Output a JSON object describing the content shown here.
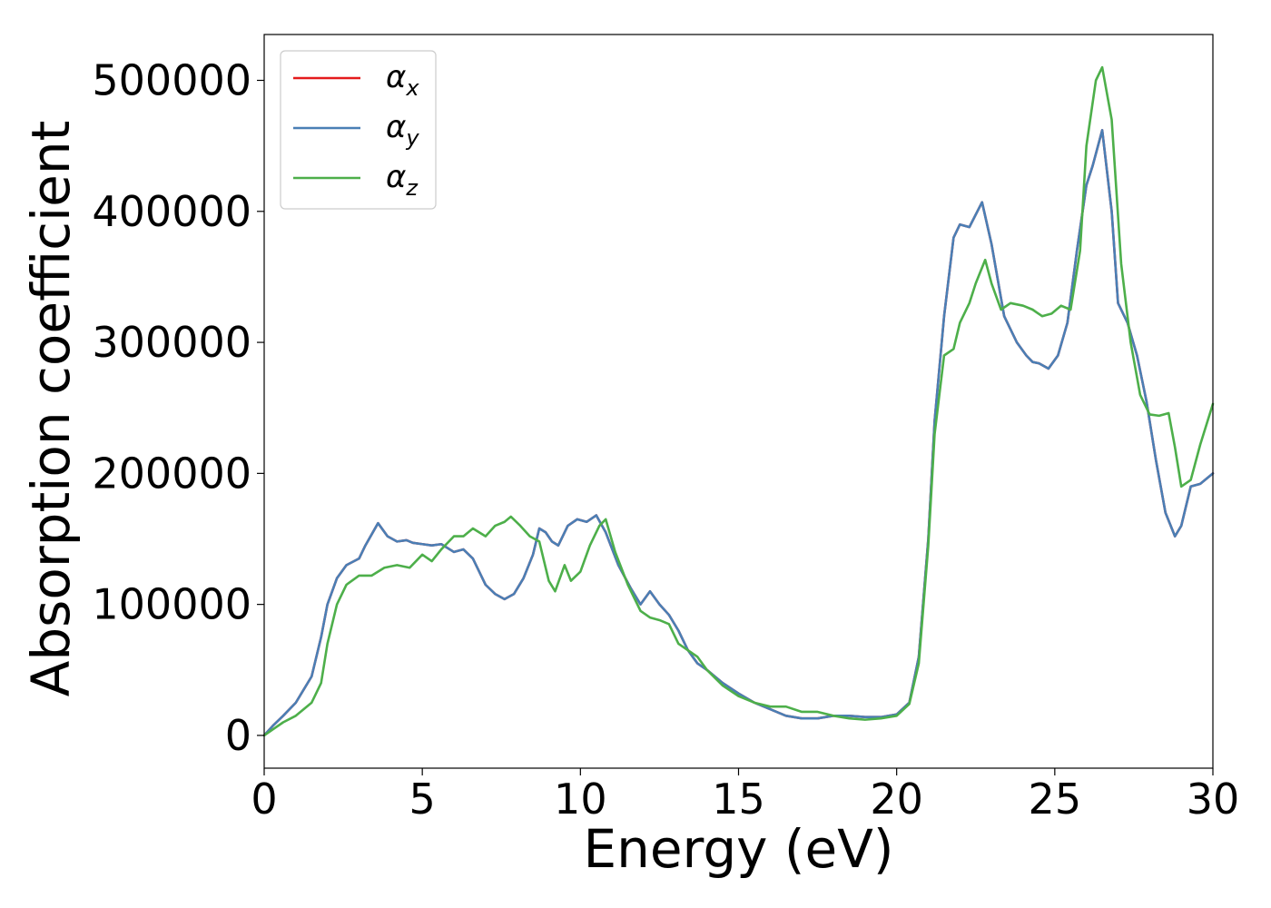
{
  "chart_data": {
    "type": "line",
    "title": "",
    "xlabel": "Energy (eV)",
    "ylabel": "Absorption coefficient",
    "xlim": [
      0,
      30
    ],
    "ylim": [
      -25000,
      535000
    ],
    "xticks": [
      0,
      5,
      10,
      15,
      20,
      25,
      30
    ],
    "xtick_labels": [
      "0",
      "5",
      "10",
      "15",
      "20",
      "25",
      "30"
    ],
    "yticks": [
      0,
      100000,
      200000,
      300000,
      400000,
      500000
    ],
    "ytick_labels": [
      "0",
      "100000",
      "200000",
      "300000",
      "400000",
      "500000"
    ],
    "grid": false,
    "legend_position": "upper-left",
    "series": [
      {
        "name": "α",
        "subscript": "x",
        "color": "#e41a1c",
        "x": [
          0,
          0.3,
          0.6,
          1.0,
          1.5,
          1.8,
          2.0,
          2.3,
          2.6,
          3.0,
          3.2,
          3.6,
          3.9,
          4.2,
          4.5,
          4.7,
          5.0,
          5.3,
          5.6,
          6.0,
          6.3,
          6.6,
          7.0,
          7.3,
          7.6,
          7.9,
          8.2,
          8.5,
          8.7,
          8.9,
          9.1,
          9.3,
          9.6,
          9.9,
          10.2,
          10.5,
          10.8,
          11.2,
          11.6,
          11.9,
          12.2,
          12.5,
          12.8,
          13.1,
          13.4,
          13.7,
          14.0,
          14.5,
          15.0,
          15.5,
          16.0,
          16.5,
          17.0,
          17.5,
          18.0,
          18.5,
          19.0,
          19.5,
          20.0,
          20.4,
          20.7,
          21.0,
          21.2,
          21.5,
          21.8,
          22.0,
          22.3,
          22.7,
          23.0,
          23.4,
          23.8,
          24.1,
          24.3,
          24.5,
          24.8,
          25.1,
          25.4,
          25.7,
          26.0,
          26.2,
          26.5,
          26.8,
          27.0,
          27.3,
          27.6,
          27.9,
          28.2,
          28.5,
          28.8,
          29.0,
          29.3,
          29.6,
          30.0
        ],
        "y": [
          0,
          8000,
          15000,
          25000,
          45000,
          75000,
          100000,
          120000,
          130000,
          135000,
          145000,
          162000,
          152000,
          148000,
          149000,
          147000,
          146000,
          145000,
          146000,
          140000,
          142000,
          135000,
          115000,
          108000,
          104000,
          108000,
          120000,
          138000,
          158000,
          155000,
          148000,
          145000,
          160000,
          165000,
          163000,
          168000,
          155000,
          130000,
          112000,
          100000,
          110000,
          100000,
          92000,
          80000,
          65000,
          55000,
          50000,
          40000,
          32000,
          25000,
          20000,
          15000,
          13000,
          13000,
          15000,
          15000,
          14000,
          14000,
          16000,
          25000,
          60000,
          150000,
          240000,
          320000,
          380000,
          390000,
          388000,
          407000,
          375000,
          320000,
          300000,
          290000,
          285000,
          284000,
          280000,
          290000,
          315000,
          370000,
          420000,
          435000,
          462000,
          400000,
          330000,
          315000,
          290000,
          255000,
          210000,
          170000,
          152000,
          160000,
          190000,
          192000,
          200000
        ]
      },
      {
        "name": "α",
        "subscript": "y",
        "color": "#4a7fb5",
        "x": [
          0,
          0.3,
          0.6,
          1.0,
          1.5,
          1.8,
          2.0,
          2.3,
          2.6,
          3.0,
          3.2,
          3.6,
          3.9,
          4.2,
          4.5,
          4.7,
          5.0,
          5.3,
          5.6,
          6.0,
          6.3,
          6.6,
          7.0,
          7.3,
          7.6,
          7.9,
          8.2,
          8.5,
          8.7,
          8.9,
          9.1,
          9.3,
          9.6,
          9.9,
          10.2,
          10.5,
          10.8,
          11.2,
          11.6,
          11.9,
          12.2,
          12.5,
          12.8,
          13.1,
          13.4,
          13.7,
          14.0,
          14.5,
          15.0,
          15.5,
          16.0,
          16.5,
          17.0,
          17.5,
          18.0,
          18.5,
          19.0,
          19.5,
          20.0,
          20.4,
          20.7,
          21.0,
          21.2,
          21.5,
          21.8,
          22.0,
          22.3,
          22.7,
          23.0,
          23.4,
          23.8,
          24.1,
          24.3,
          24.5,
          24.8,
          25.1,
          25.4,
          25.7,
          26.0,
          26.2,
          26.5,
          26.8,
          27.0,
          27.3,
          27.6,
          27.9,
          28.2,
          28.5,
          28.8,
          29.0,
          29.3,
          29.6,
          30.0
        ],
        "y": [
          0,
          8000,
          15000,
          25000,
          45000,
          75000,
          100000,
          120000,
          130000,
          135000,
          145000,
          162000,
          152000,
          148000,
          149000,
          147000,
          146000,
          145000,
          146000,
          140000,
          142000,
          135000,
          115000,
          108000,
          104000,
          108000,
          120000,
          138000,
          158000,
          155000,
          148000,
          145000,
          160000,
          165000,
          163000,
          168000,
          155000,
          130000,
          112000,
          100000,
          110000,
          100000,
          92000,
          80000,
          65000,
          55000,
          50000,
          40000,
          32000,
          25000,
          20000,
          15000,
          13000,
          13000,
          15000,
          15000,
          14000,
          14000,
          16000,
          25000,
          60000,
          150000,
          240000,
          320000,
          380000,
          390000,
          388000,
          407000,
          375000,
          320000,
          300000,
          290000,
          285000,
          284000,
          280000,
          290000,
          315000,
          370000,
          420000,
          435000,
          462000,
          400000,
          330000,
          315000,
          290000,
          255000,
          210000,
          170000,
          152000,
          160000,
          190000,
          192000,
          200000
        ]
      },
      {
        "name": "α",
        "subscript": "z",
        "color": "#4daf4a",
        "x": [
          0,
          0.3,
          0.6,
          1.0,
          1.5,
          1.8,
          2.0,
          2.3,
          2.6,
          3.0,
          3.4,
          3.8,
          4.2,
          4.6,
          5.0,
          5.3,
          5.6,
          6.0,
          6.3,
          6.6,
          7.0,
          7.3,
          7.6,
          7.8,
          8.1,
          8.4,
          8.7,
          9.0,
          9.2,
          9.5,
          9.7,
          10.0,
          10.3,
          10.6,
          10.8,
          11.1,
          11.5,
          11.9,
          12.2,
          12.5,
          12.8,
          13.1,
          13.4,
          13.7,
          14.0,
          14.5,
          15.0,
          15.5,
          16.0,
          16.5,
          17.0,
          17.5,
          18.0,
          18.5,
          19.0,
          19.5,
          20.0,
          20.4,
          20.7,
          21.0,
          21.2,
          21.5,
          21.8,
          22.0,
          22.3,
          22.5,
          22.8,
          23.0,
          23.3,
          23.6,
          24.0,
          24.3,
          24.6,
          24.9,
          25.2,
          25.5,
          25.8,
          26.0,
          26.3,
          26.5,
          26.8,
          27.1,
          27.4,
          27.7,
          28.0,
          28.3,
          28.6,
          28.8,
          29.0,
          29.3,
          29.6,
          30.0
        ],
        "y": [
          0,
          5000,
          10000,
          15000,
          25000,
          40000,
          70000,
          100000,
          115000,
          122000,
          122000,
          128000,
          130000,
          128000,
          138000,
          133000,
          142000,
          152000,
          152000,
          158000,
          152000,
          160000,
          163000,
          167000,
          160000,
          152000,
          148000,
          118000,
          110000,
          130000,
          118000,
          125000,
          145000,
          160000,
          165000,
          140000,
          115000,
          95000,
          90000,
          88000,
          85000,
          70000,
          65000,
          60000,
          50000,
          38000,
          30000,
          25000,
          22000,
          22000,
          18000,
          18000,
          15000,
          13000,
          12000,
          13000,
          15000,
          24000,
          55000,
          145000,
          230000,
          290000,
          295000,
          315000,
          330000,
          345000,
          363000,
          345000,
          325000,
          330000,
          328000,
          325000,
          320000,
          322000,
          328000,
          325000,
          370000,
          450000,
          500000,
          510000,
          470000,
          360000,
          300000,
          260000,
          245000,
          244000,
          246000,
          220000,
          190000,
          195000,
          222000,
          253000
        ]
      }
    ]
  }
}
